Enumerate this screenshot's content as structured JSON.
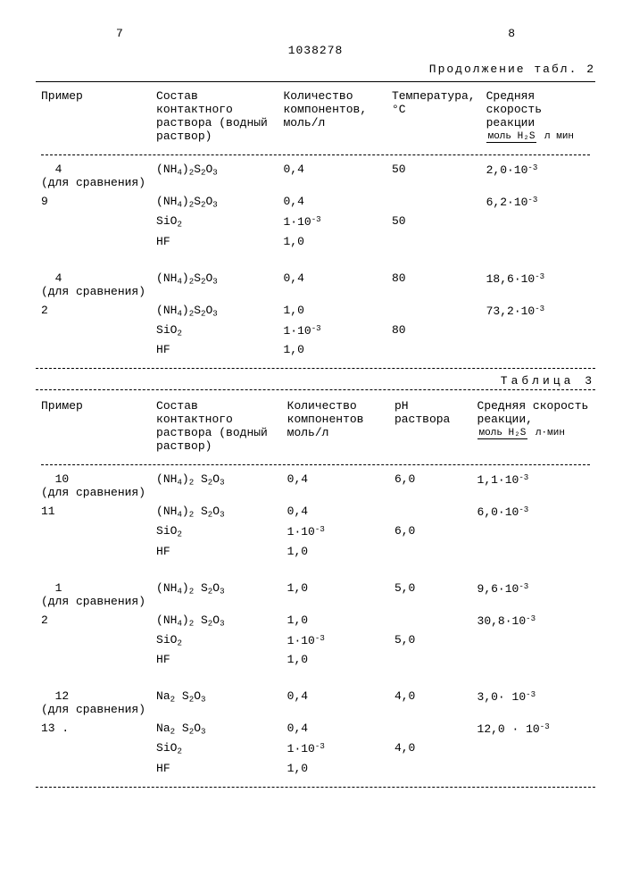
{
  "page_left": "7",
  "docid": "1038278",
  "page_right": "8",
  "tbl2_cont": "Продолжение табл. 2",
  "tbl3_title": "Таблица 3",
  "headers2": {
    "c1": "Пример",
    "c2": "Состав контактного раствора (водный раствор)",
    "c3": "Количество компонентов, моль/л",
    "c4": "Температура, °С",
    "c5_a": "Средняя скорость реакции",
    "c5_frac_top": "моль H₂S",
    "c5_frac_bot": "л мин"
  },
  "headers3": {
    "c1": "Пример",
    "c2": "Состав контактного раствора (водный раствор)",
    "c3": "Количество компонентов моль/л",
    "c4": "pH раствора",
    "c5_a": "Средняя скорость реакции,",
    "c5_frac_top": "моль H₂S",
    "c5_frac_bot": "л·мин"
  },
  "t2": [
    {
      "ex": "4",
      "note": "(для сравнения)",
      "comp": "(NH₄)₂S₂O₃",
      "qty": "0,4",
      "temp": "50",
      "rate": "2,0·10⁻³"
    },
    {
      "ex": "9",
      "note": "",
      "comp": "(NH₄)₂S₂O₃",
      "qty": "0,4",
      "temp": "",
      "rate": "6,2·10⁻³"
    },
    {
      "ex": "",
      "note": "",
      "comp": "SiO₂",
      "qty": "1·10⁻³",
      "temp": "50",
      "rate": ""
    },
    {
      "ex": "",
      "note": "",
      "comp": "HF",
      "qty": "1,0",
      "temp": "",
      "rate": ""
    },
    {
      "ex": "4",
      "note": "(для сравнения)",
      "comp": "(NH₄)₂S₂O₃",
      "qty": "0,4",
      "temp": "80",
      "rate": "18,6·10⁻³"
    },
    {
      "ex": "2",
      "note": "",
      "comp": "(NH₄)₂S₂O₃",
      "qty": "1,0",
      "temp": "",
      "rate": "73,2·10⁻³"
    },
    {
      "ex": "",
      "note": "",
      "comp": "SiO₂",
      "qty": "1·10⁻³",
      "temp": "80",
      "rate": ""
    },
    {
      "ex": "",
      "note": "",
      "comp": "HF",
      "qty": "1,0",
      "temp": "",
      "rate": ""
    }
  ],
  "t3": [
    {
      "ex": "10",
      "note": "(для сравнения)",
      "comp": "(NH₄)₂ S₂O₃",
      "qty": "0,4",
      "ph": "6,0",
      "rate": "1,1·10⁻³"
    },
    {
      "ex": "11",
      "note": "",
      "comp": "(NH₄)₂ S₂O₃",
      "qty": "0,4",
      "ph": "",
      "rate": "6,0·10⁻³"
    },
    {
      "ex": "",
      "note": "",
      "comp": "SiO₂",
      "qty": "1·10⁻³",
      "ph": "6,0",
      "rate": ""
    },
    {
      "ex": "",
      "note": "",
      "comp": "HF",
      "qty": "1,0",
      "ph": "",
      "rate": ""
    },
    {
      "ex": "1",
      "note": "(для сравнения)",
      "comp": "(NH₄)₂ S₂O₃",
      "qty": "1,0",
      "ph": "5,0",
      "rate": "9,6·10⁻³"
    },
    {
      "ex": "2",
      "note": "",
      "comp": "(NH₄)₂ S₂O₃",
      "qty": "1,0",
      "ph": "",
      "rate": "30,8·10⁻³"
    },
    {
      "ex": "",
      "note": "",
      "comp": "SiO₂",
      "qty": "1·10⁻³",
      "ph": "5,0",
      "rate": ""
    },
    {
      "ex": "",
      "note": "",
      "comp": "HF",
      "qty": "1,0",
      "ph": "",
      "rate": ""
    },
    {
      "ex": "12",
      "note": "(для сравнения)",
      "comp": "Na₂ S₂O₃",
      "qty": "0,4",
      "ph": "4,0",
      "rate": "3,0· 10⁻³"
    },
    {
      "ex": "13 .",
      "note": "",
      "comp": "Na₂ S₂O₃",
      "qty": "0,4",
      "ph": "",
      "rate": "12,0 · 10⁻³"
    },
    {
      "ex": "",
      "note": "",
      "comp": "SiO₂",
      "qty": "1·10⁻³",
      "ph": "4,0",
      "rate": ""
    },
    {
      "ex": "",
      "note": "",
      "comp": "HF",
      "qty": "1,0",
      "ph": "",
      "rate": ""
    }
  ]
}
